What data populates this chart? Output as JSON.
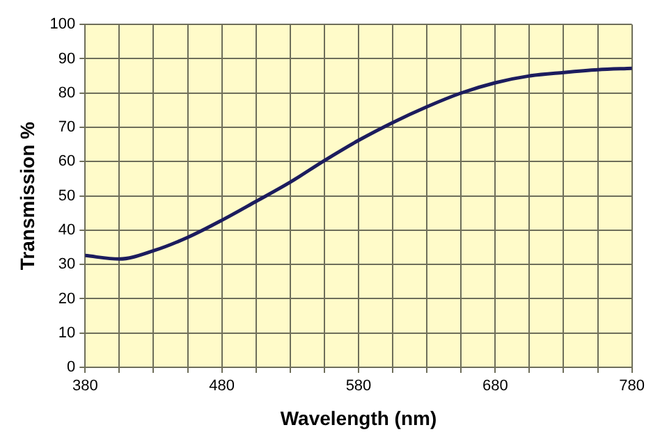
{
  "chart_data": {
    "type": "line",
    "xlabel": "Wavelength (nm)",
    "ylabel": "Transmission %",
    "x": [
      380,
      405,
      430,
      455,
      480,
      505,
      530,
      555,
      580,
      605,
      630,
      655,
      680,
      705,
      730,
      755,
      780
    ],
    "series": [
      {
        "color": "#1c1c5e",
        "values": [
          32.6,
          31.6,
          34,
          37.9,
          42.9,
          48.4,
          54,
          60.3,
          66.2,
          71.4,
          76,
          80,
          83,
          85,
          86,
          86.8,
          87.2
        ]
      }
    ],
    "xlim": [
      380,
      780
    ],
    "xticks": [
      380,
      {
        "value": 405,
        "label": null
      },
      {
        "value": 430,
        "label": null
      },
      {
        "value": 455,
        "label": null
      },
      480,
      {
        "value": 505,
        "label": null
      },
      {
        "value": 530,
        "label": null
      },
      {
        "value": 555,
        "label": null
      },
      580,
      {
        "value": 605,
        "label": null
      },
      {
        "value": 630,
        "label": null
      },
      {
        "value": 655,
        "label": null
      },
      680,
      {
        "value": 705,
        "label": null
      },
      {
        "value": 730,
        "label": null
      },
      {
        "value": 755,
        "label": null
      },
      780
    ],
    "ylim": [
      0,
      100
    ],
    "yticks": [
      0,
      10,
      20,
      30,
      40,
      50,
      60,
      70,
      80,
      90,
      100
    ],
    "grid": true,
    "legend": false,
    "marker": "none",
    "line_style": "solid"
  }
}
